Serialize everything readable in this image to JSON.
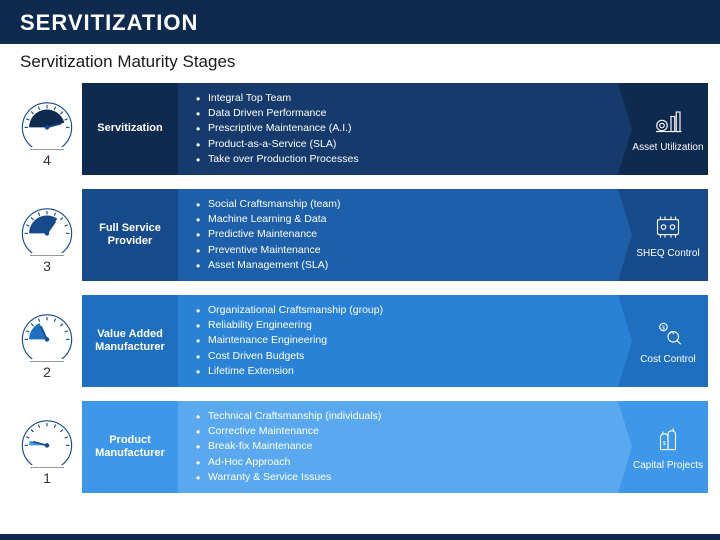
{
  "header": {
    "title": "SERVITIZATION",
    "subtitle": "Servitization Maturity Stages"
  },
  "stages": [
    {
      "level": "4",
      "label": "Servitization",
      "bullets": [
        "Integral Top Team",
        "Data Driven Performance",
        "Prescriptive Maintenance (A.I.)",
        "Product-as-a-Service (SLA)",
        "Take over Production Processes"
      ],
      "icon_label": "Asset Utilization",
      "label_bg": "#0f2a4f",
      "bullets_bg": "#153a6b",
      "icon_bg": "#0f2a4f",
      "gauge_fill": "#0f2a4f",
      "needle_angle": -15
    },
    {
      "level": "3",
      "label": "Full Service Provider",
      "bullets": [
        "Social Craftsmanship (team)",
        "Machine Learning & Data",
        "Predictive Maintenance",
        "Preventive Maintenance",
        "Asset Management (SLA)"
      ],
      "icon_label": "SHEQ Control",
      "label_bg": "#164a8a",
      "bullets_bg": "#1d5fa8",
      "icon_bg": "#164a8a",
      "gauge_fill": "#164a8a",
      "needle_angle": -55
    },
    {
      "level": "2",
      "label": "Value Added Manufacturer",
      "bullets": [
        "Organizational Craftsmanship (group)",
        "Reliability Engineering",
        "Maintenance Engineering",
        "Cost Driven Budgets",
        "Lifetime Extension"
      ],
      "icon_label": "Cost Control",
      "label_bg": "#1e6fc0",
      "bullets_bg": "#2a82d6",
      "icon_bg": "#1e6fc0",
      "gauge_fill": "#1e6fc0",
      "needle_angle": -115
    },
    {
      "level": "1",
      "label": "Product Manufacturer",
      "bullets": [
        "Technical Craftsmanship (individuals)",
        "Corrective Maintenance",
        "Break-fix Maintenance",
        "Ad-Hoc Approach",
        "Warranty & Service Issues"
      ],
      "icon_label": "Capital Projects",
      "label_bg": "#3e97e8",
      "bullets_bg": "#5aa9ef",
      "icon_bg": "#3e97e8",
      "gauge_fill": "#3e97e8",
      "needle_angle": -165
    }
  ],
  "colors": {
    "header_bg": "#0f2a4f",
    "page_bg": "#ffffff",
    "gauge_outline": "#164a8a"
  }
}
